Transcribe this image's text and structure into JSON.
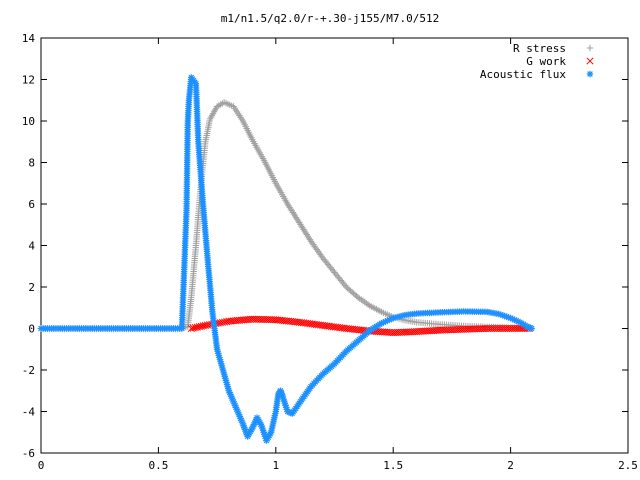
{
  "chart_data": {
    "type": "scatter",
    "title": "m1/n1.5/q2.0/r-+.30-j155/M7.0/512",
    "xlabel": "",
    "ylabel": "",
    "xlim": [
      0,
      2.5
    ],
    "ylim": [
      -6,
      14
    ],
    "x_ticks": [
      "0",
      "0.5",
      "1",
      "1.5",
      "2",
      "2.5"
    ],
    "y_ticks": [
      "-6",
      "-4",
      "-2",
      "0",
      "2",
      "4",
      "6",
      "8",
      "10",
      "12",
      "14"
    ],
    "grid": false,
    "legend_position": "top-right",
    "series": [
      {
        "name": "R stress",
        "marker": "plus",
        "color": "#a0a0a0",
        "points": [
          [
            0,
            0
          ],
          [
            0.2,
            0
          ],
          [
            0.4,
            0
          ],
          [
            0.6,
            0
          ],
          [
            0.625,
            0.1
          ],
          [
            0.64,
            1.5
          ],
          [
            0.66,
            4.0
          ],
          [
            0.68,
            6.8
          ],
          [
            0.7,
            9.0
          ],
          [
            0.72,
            10.1
          ],
          [
            0.75,
            10.7
          ],
          [
            0.78,
            10.9
          ],
          [
            0.82,
            10.7
          ],
          [
            0.86,
            10.0
          ],
          [
            0.9,
            9.1
          ],
          [
            0.95,
            8.1
          ],
          [
            1.0,
            7.0
          ],
          [
            1.05,
            6.0
          ],
          [
            1.1,
            5.1
          ],
          [
            1.15,
            4.2
          ],
          [
            1.2,
            3.4
          ],
          [
            1.25,
            2.7
          ],
          [
            1.3,
            2.0
          ],
          [
            1.35,
            1.5
          ],
          [
            1.4,
            1.1
          ],
          [
            1.45,
            0.8
          ],
          [
            1.5,
            0.55
          ],
          [
            1.55,
            0.4
          ],
          [
            1.6,
            0.3
          ],
          [
            1.7,
            0.2
          ],
          [
            1.8,
            0.12
          ],
          [
            1.9,
            0.08
          ],
          [
            2.0,
            0.04
          ],
          [
            2.05,
            0.02
          ],
          [
            2.08,
            0.01
          ]
        ]
      },
      {
        "name": "G work",
        "marker": "cross",
        "color": "#ff0000",
        "points": [
          [
            0.64,
            0
          ],
          [
            0.7,
            0.15
          ],
          [
            0.8,
            0.35
          ],
          [
            0.9,
            0.45
          ],
          [
            1.0,
            0.42
          ],
          [
            1.1,
            0.3
          ],
          [
            1.2,
            0.15
          ],
          [
            1.3,
            0.0
          ],
          [
            1.4,
            -0.12
          ],
          [
            1.5,
            -0.2
          ],
          [
            1.6,
            -0.15
          ],
          [
            1.7,
            -0.08
          ],
          [
            1.8,
            -0.04
          ],
          [
            1.9,
            0.0
          ],
          [
            2.0,
            0.0
          ],
          [
            2.08,
            0.0
          ]
        ]
      },
      {
        "name": "Acoustic flux",
        "marker": "star",
        "color": "#1e90ff",
        "points": [
          [
            0,
            0
          ],
          [
            0.2,
            0
          ],
          [
            0.4,
            0
          ],
          [
            0.6,
            0
          ],
          [
            0.62,
            5.8
          ],
          [
            0.625,
            9.9
          ],
          [
            0.63,
            11.0
          ],
          [
            0.64,
            12.1
          ],
          [
            0.66,
            11.8
          ],
          [
            0.67,
            9.0
          ],
          [
            0.69,
            6.0
          ],
          [
            0.71,
            3.3
          ],
          [
            0.73,
            0.8
          ],
          [
            0.75,
            -1.0
          ],
          [
            0.78,
            -2.2
          ],
          [
            0.8,
            -3.0
          ],
          [
            0.83,
            -3.8
          ],
          [
            0.86,
            -4.6
          ],
          [
            0.88,
            -5.2
          ],
          [
            0.9,
            -4.8
          ],
          [
            0.92,
            -4.3
          ],
          [
            0.94,
            -4.7
          ],
          [
            0.96,
            -5.4
          ],
          [
            0.98,
            -5.0
          ],
          [
            1.0,
            -4.0
          ],
          [
            1.01,
            -3.2
          ],
          [
            1.02,
            -3.0
          ],
          [
            1.03,
            -3.3
          ],
          [
            1.05,
            -4.0
          ],
          [
            1.07,
            -4.1
          ],
          [
            1.1,
            -3.6
          ],
          [
            1.15,
            -2.8
          ],
          [
            1.2,
            -2.2
          ],
          [
            1.25,
            -1.7
          ],
          [
            1.3,
            -1.1
          ],
          [
            1.35,
            -0.6
          ],
          [
            1.4,
            -0.1
          ],
          [
            1.45,
            0.25
          ],
          [
            1.5,
            0.5
          ],
          [
            1.55,
            0.65
          ],
          [
            1.6,
            0.72
          ],
          [
            1.7,
            0.78
          ],
          [
            1.8,
            0.82
          ],
          [
            1.9,
            0.8
          ],
          [
            1.95,
            0.7
          ],
          [
            2.0,
            0.5
          ],
          [
            2.04,
            0.3
          ],
          [
            2.07,
            0.1
          ],
          [
            2.09,
            0.0
          ]
        ]
      }
    ]
  }
}
